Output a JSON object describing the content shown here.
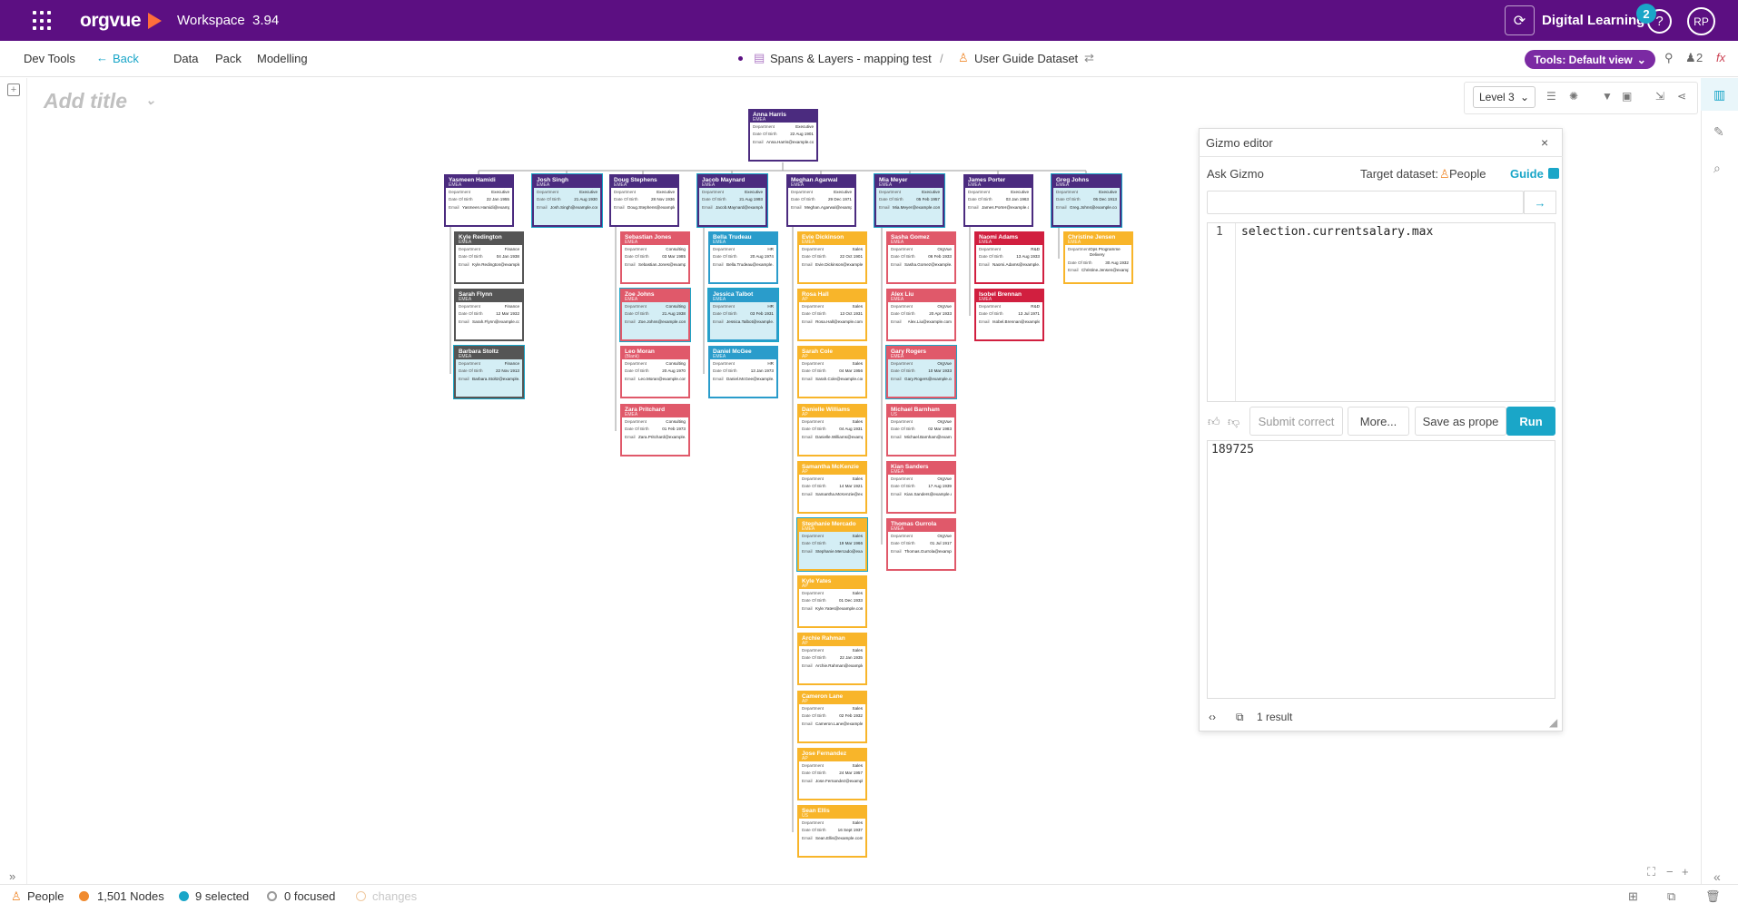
{
  "topbar": {
    "logo": "orgvue",
    "workspace_label": "Workspace",
    "version": "3.94",
    "user_name": "Digital Learning",
    "notification_count": "2",
    "help_glyph": "?",
    "avatar_initials": "RP"
  },
  "toolbar": {
    "dev_tools": "Dev Tools",
    "back": "Back",
    "data": "Data",
    "pack": "Pack",
    "modelling": "Modelling",
    "breadcrumb_1": "Spans & Layers - mapping test",
    "separator": "/",
    "breadcrumb_2": "User Guide Dataset",
    "tools_view": "Tools: Default view",
    "people_count": "2"
  },
  "canvas": {
    "add_title": "Add title",
    "level": "Level 3"
  },
  "nodes": [
    {
      "name": "Anna Harris",
      "region": "EMEA",
      "dept": "Executive",
      "dob": "22 Aug 1901",
      "email": "Anna.Harris@example.com",
      "color": "purple",
      "selected": false
    },
    {
      "name": "Yasmeen Hamidi",
      "region": "EMEA",
      "dept": "Executive",
      "dob": "22 Jan 1955",
      "email": "Yasmeen.Hamidi@example.com",
      "color": "purple",
      "selected": false
    },
    {
      "name": "Josh Singh",
      "region": "EMEA",
      "dept": "Executive",
      "dob": "21 Aug 1930",
      "email": "Josh.Singh@example.com",
      "color": "purple",
      "selected": true
    },
    {
      "name": "Doug Stephens",
      "region": "EMEA",
      "dept": "Executive",
      "dob": "28 Nov 1936",
      "email": "Doug.Stephens@example.com",
      "color": "purple",
      "selected": false
    },
    {
      "name": "Jacob Maynard",
      "region": "EMEA",
      "dept": "Executive",
      "dob": "21 Aug 1993",
      "email": "Jacob.Maynard@example.com",
      "color": "purple",
      "selected": true
    },
    {
      "name": "Meghan Agarwal",
      "region": "EMEA",
      "dept": "Executive",
      "dob": "29 Dec 1971",
      "email": "Meghan.Agarwal@example.com",
      "color": "purple",
      "selected": false
    },
    {
      "name": "Mia Meyer",
      "region": "EMEA",
      "dept": "Executive",
      "dob": "05 Feb 1957",
      "email": "Mia.Meyer@example.com",
      "color": "purple",
      "selected": true
    },
    {
      "name": "James Porter",
      "region": "EMEA",
      "dept": "Executive",
      "dob": "03 Jan 1963",
      "email": "James.Porter@example.com",
      "color": "purple",
      "selected": false
    },
    {
      "name": "Greg Johns",
      "region": "EMEA",
      "dept": "Executive",
      "dob": "05 Dec 1913",
      "email": "Greg.Johns@example.com",
      "color": "purple",
      "selected": true
    },
    {
      "name": "Kyle Redington",
      "region": "EMEA",
      "dept": "Finance",
      "dob": "04 Jan 1938",
      "email": "Kyle.Redington@example.com",
      "color": "gray",
      "selected": false
    },
    {
      "name": "Sarah Flynn",
      "region": "EMEA",
      "dept": "Finance",
      "dob": "12 Mar 1932",
      "email": "Sarah.Flynn@example.com",
      "color": "gray",
      "selected": false
    },
    {
      "name": "Barbara Stoltz",
      "region": "EMEA",
      "dept": "Finance",
      "dob": "22 Nov 1913",
      "email": "Barbara.Stoltz@example.com",
      "color": "gray",
      "selected": true
    },
    {
      "name": "Sebastian Jones",
      "region": "EMEA",
      "dept": "Consulting",
      "dob": "03 Mar 1985",
      "email": "Sebastian.Jones@example.com",
      "color": "red",
      "selected": false
    },
    {
      "name": "Zoe Johns",
      "region": "EMEA",
      "dept": "Consulting",
      "dob": "21 Aug 1938",
      "email": "Zoe.Johns@example.com",
      "color": "red",
      "selected": true
    },
    {
      "name": "Leo Moran",
      "region": "(Blank)",
      "dept": "Consulting",
      "dob": "20 Aug 1970",
      "email": "Leo.Moran@example.com",
      "color": "red",
      "selected": false
    },
    {
      "name": "Zara Pritchard",
      "region": "EMEA",
      "dept": "Consulting",
      "dob": "01 Feb 1973",
      "email": "Zara.Pritchard@example.com",
      "color": "red",
      "selected": false
    },
    {
      "name": "Bella Trudeau",
      "region": "EMEA",
      "dept": "HR",
      "dob": "20 Aug 1974",
      "email": "Bella.Trudeau@example.com",
      "color": "blue",
      "selected": false
    },
    {
      "name": "Jessica Talbot",
      "region": "EMEA",
      "dept": "HR",
      "dob": "03 Feb 1931",
      "email": "Jessica.Talbot@example.com",
      "color": "blue",
      "selected": true
    },
    {
      "name": "Daniel McGee",
      "region": "EMEA",
      "dept": "HR",
      "dob": "13 Jan 1973",
      "email": "Daniel.McGee@example.com",
      "color": "blue",
      "selected": false
    },
    {
      "name": "Evie Dickinson",
      "region": "EMEA",
      "dept": "Sales",
      "dob": "22 Oct 1901",
      "email": "Evie.Dickinson@example.com",
      "color": "yellow",
      "selected": false
    },
    {
      "name": "Rosa Hall",
      "region": "AP",
      "dept": "Sales",
      "dob": "13 Oct 1931",
      "email": "Rosa.Hall@example.com",
      "color": "yellow",
      "selected": false
    },
    {
      "name": "Sarah Cole",
      "region": "AP",
      "dept": "Sales",
      "dob": "04 Mar 1956",
      "email": "Sarah.Cole@example.com",
      "color": "yellow",
      "selected": false
    },
    {
      "name": "Danielle Williams",
      "region": "AP",
      "dept": "Sales",
      "dob": "04 Aug 1931",
      "email": "Danielle.Williams@example.com",
      "color": "yellow",
      "selected": false
    },
    {
      "name": "Samantha McKenzie",
      "region": "AP",
      "dept": "Sales",
      "dob": "14 Mar 1921",
      "email": "Samantha.McKenzie@example.com",
      "color": "yellow",
      "selected": false
    },
    {
      "name": "Stephanie Mercado",
      "region": "EMEA",
      "dept": "Sales",
      "dob": "19 Mar 1966",
      "email": "Stephanie.Mercado@example.com",
      "color": "yellow",
      "selected": true
    },
    {
      "name": "Kyle Yates",
      "region": "AP",
      "dept": "Sales",
      "dob": "01 Dec 1933",
      "email": "Kyle.Yates@example.com",
      "color": "yellow",
      "selected": false
    },
    {
      "name": "Archie Rahman",
      "region": "AP",
      "dept": "Sales",
      "dob": "22 Jan 1935",
      "email": "Archie.Rahman@example.com",
      "color": "yellow",
      "selected": false
    },
    {
      "name": "Cameron Lane",
      "region": "AP",
      "dept": "Sales",
      "dob": "02 Feb 1932",
      "email": "Cameron.Lane@example.com",
      "color": "yellow",
      "selected": false
    },
    {
      "name": "Jose Fernandez",
      "region": "AP",
      "dept": "Sales",
      "dob": "24 Mar 1957",
      "email": "Jose.Fernandez@example.com",
      "color": "yellow",
      "selected": false
    },
    {
      "name": "Sean Ellis",
      "region": "US",
      "dept": "Sales",
      "dob": "16 Sept 1937",
      "email": "Sean.Ellis@example.com",
      "color": "yellow",
      "selected": false
    },
    {
      "name": "Sasha Gomez",
      "region": "EMEA",
      "dept": "OrgVue",
      "dob": "06 Feb 1933",
      "email": "Sasha.Gomez@example.com",
      "color": "red",
      "selected": false
    },
    {
      "name": "Alex Liu",
      "region": "EMEA",
      "dept": "OrgVue",
      "dob": "20 Apr 1933",
      "email": "Alex.Liu@example.com",
      "color": "red",
      "selected": false
    },
    {
      "name": "Gary Rogers",
      "region": "EMEA",
      "dept": "OrgVue",
      "dob": "10 Mar 1933",
      "email": "Gary.Rogers@example.com",
      "color": "red",
      "selected": true
    },
    {
      "name": "Michael Barnham",
      "region": "US",
      "dept": "OrgVue",
      "dob": "02 Mar 1983",
      "email": "Michael.Barnham@example.com",
      "color": "red",
      "selected": false
    },
    {
      "name": "Kian Sanders",
      "region": "EMEA",
      "dept": "OrgVue",
      "dob": "17 Aug 1939",
      "email": "Kian.Sanders@example.com",
      "color": "red",
      "selected": false
    },
    {
      "name": "Thomas Gurrola",
      "region": "EMEA",
      "dept": "OrgVue",
      "dob": "01 Jul 1917",
      "email": "Thomas.Gurrola@example.com",
      "color": "red",
      "selected": false
    },
    {
      "name": "Naomi Adams",
      "region": "EMEA",
      "dept": "R&D",
      "dob": "13 Aug 1933",
      "email": "Naomi.Adams@example.com",
      "color": "crimson",
      "selected": false
    },
    {
      "name": "Isobel Brennan",
      "region": "EMEA",
      "dept": "R&D",
      "dob": "13 Jul 1971",
      "email": "Isobel.Brennan@example.com",
      "color": "crimson",
      "selected": false
    },
    {
      "name": "Christine Jensen",
      "region": "EMEA",
      "dept": "Ops Programme Delivery",
      "dob": "30 Aug 1932",
      "email": "Christine.Jensen@example.com",
      "color": "yellow",
      "selected": false
    }
  ],
  "node_labels": {
    "dept": "Department",
    "dob": "Date Of Birth",
    "email": "Email"
  },
  "gizmo": {
    "title": "Gizmo editor",
    "close": "×",
    "ask": "Ask Gizmo",
    "target_label": "Target dataset:",
    "target_value": "People",
    "guide": "Guide",
    "send_glyph": "→",
    "line_no": "1",
    "code": "selection.currentsalary.max",
    "btn_submit": "Submit correct",
    "btn_more": "More...",
    "btn_save": "Save as prope",
    "btn_run": "Run",
    "result": "189725",
    "result_count": "1 result"
  },
  "status": {
    "dataset": "People",
    "nodes": "1,501 Nodes",
    "selected": "9 selected",
    "focused": "0 focused",
    "changes": "changes"
  },
  "colors": {
    "brand": "#5c0f82",
    "accent": "#1aa6c8",
    "tools_pill": "#7b2aa3",
    "purple": "#4b2b7f",
    "gray": "#555555",
    "red": "#e0596a",
    "blue": "#2a9ccb",
    "yellow": "#f8b52a",
    "crimson": "#d11f3f"
  }
}
